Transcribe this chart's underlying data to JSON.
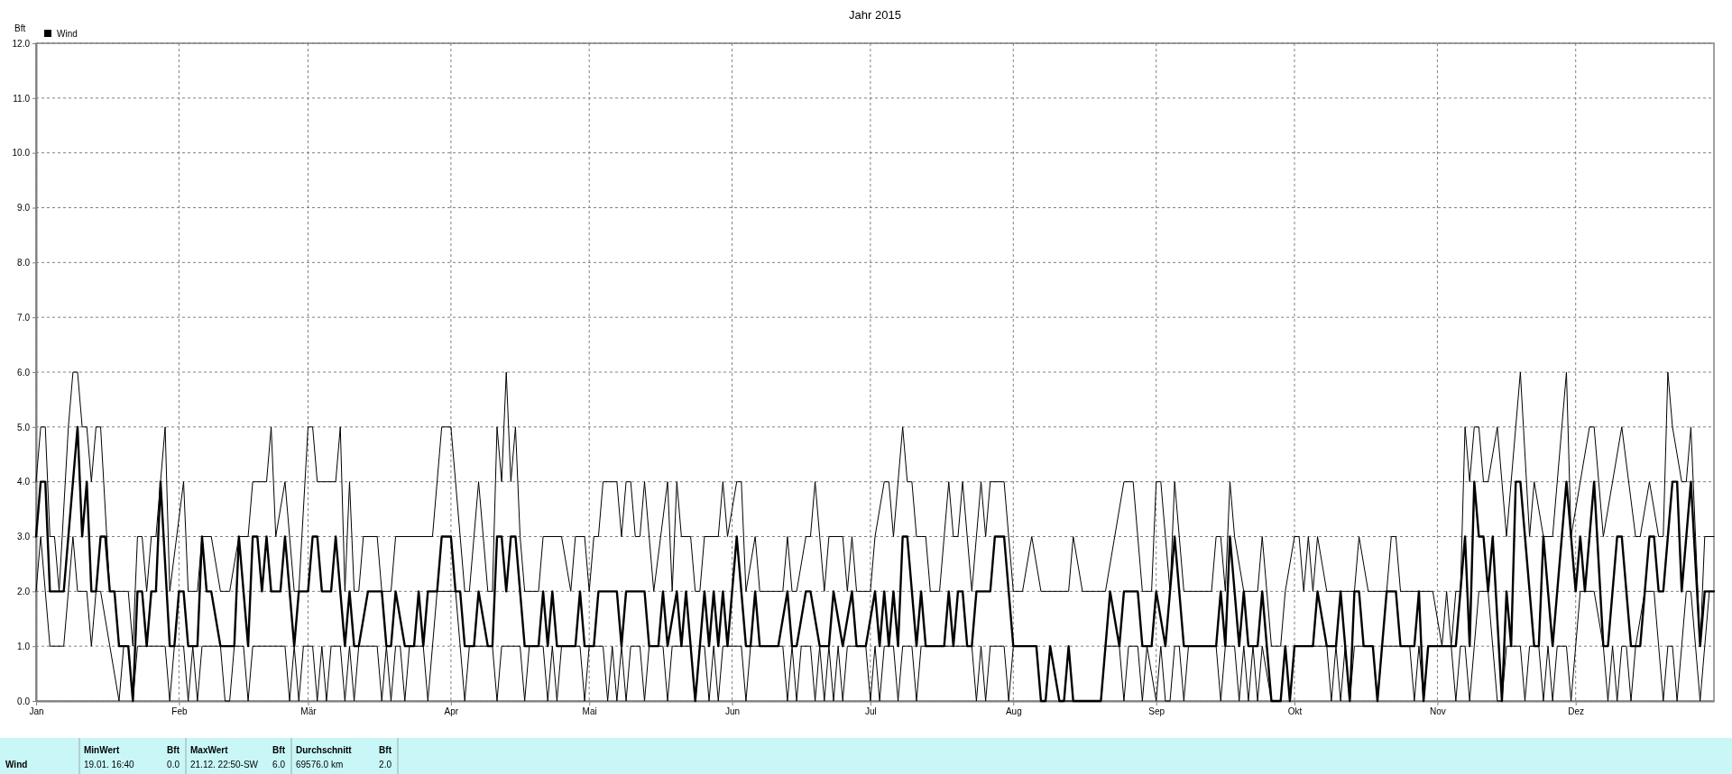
{
  "chart_data": {
    "type": "line",
    "title": "Jahr 2015",
    "ylabel": "Bft",
    "xlim": [
      "2015-01-01",
      "2015-12-31"
    ],
    "ylim": [
      0,
      12
    ],
    "xticks": [
      {
        "value": "2015-01-01",
        "label": "Jan"
      },
      {
        "value": "2015-02-01",
        "label": "Feb"
      },
      {
        "value": "2015-03-01",
        "label": "Mär"
      },
      {
        "value": "2015-04-01",
        "label": "Apr"
      },
      {
        "value": "2015-05-01",
        "label": "Mai"
      },
      {
        "value": "2015-06-01",
        "label": "Jun"
      },
      {
        "value": "2015-07-01",
        "label": "Jul"
      },
      {
        "value": "2015-08-01",
        "label": "Aug"
      },
      {
        "value": "2015-09-01",
        "label": "Sep"
      },
      {
        "value": "2015-10-01",
        "label": "Okt"
      },
      {
        "value": "2015-11-01",
        "label": "Nov"
      },
      {
        "value": "2015-12-01",
        "label": "Dez"
      }
    ],
    "yticks": [
      {
        "value": 0,
        "label": "0.0"
      },
      {
        "value": 1,
        "label": "1.0"
      },
      {
        "value": 2,
        "label": "2.0"
      },
      {
        "value": 3,
        "label": "3.0"
      },
      {
        "value": 4,
        "label": "4.0"
      },
      {
        "value": 5,
        "label": "5.0"
      },
      {
        "value": 6,
        "label": "6.0"
      },
      {
        "value": 7,
        "label": "7.0"
      },
      {
        "value": 8,
        "label": "8.0"
      },
      {
        "value": 9,
        "label": "9.0"
      },
      {
        "value": 10,
        "label": "10.0"
      },
      {
        "value": 11,
        "label": "11.0"
      },
      {
        "value": 12,
        "label": "12.0"
      }
    ],
    "grid": true,
    "legend": "top left",
    "series": [
      {
        "color": "#000000",
        "x": [
          "2015-01-01",
          "2015-01-02",
          "2015-01-03",
          "2015-01-04",
          "2015-01-05",
          "2015-01-06",
          "2015-01-08",
          "2015-01-09",
          "2015-01-10",
          "2015-01-11",
          "2015-01-12",
          "2015-01-13",
          "2015-01-14",
          "2015-01-15",
          "2015-01-17",
          "2015-01-21",
          "2015-01-22",
          "2015-01-23",
          "2015-01-24",
          "2015-01-25",
          "2015-01-26",
          "2015-01-27",
          "2015-01-29",
          "2015-01-30",
          "2015-02-02",
          "2015-02-03",
          "2015-02-05",
          "2015-02-06",
          "2015-02-08",
          "2015-02-10",
          "2015-02-12",
          "2015-02-14",
          "2015-02-16",
          "2015-02-17",
          "2015-02-20",
          "2015-02-21",
          "2015-02-22",
          "2015-02-24",
          "2015-02-26",
          "2015-02-27",
          "2015-03-01",
          "2015-03-02",
          "2015-03-03",
          "2015-03-07",
          "2015-03-08",
          "2015-03-09",
          "2015-03-10",
          "2015-03-11",
          "2015-03-12",
          "2015-03-13",
          "2015-03-16",
          "2015-03-17",
          "2015-03-19",
          "2015-03-20",
          "2015-03-28",
          "2015-03-30",
          "2015-04-01",
          "2015-04-04",
          "2015-04-05",
          "2015-04-07",
          "2015-04-09",
          "2015-04-10",
          "2015-04-11",
          "2015-04-12",
          "2015-04-13",
          "2015-04-14",
          "2015-04-15",
          "2015-04-16",
          "2015-04-17",
          "2015-04-20",
          "2015-04-21",
          "2015-04-25",
          "2015-04-27",
          "2015-04-28",
          "2015-04-30",
          "2015-05-01",
          "2015-05-02",
          "2015-05-03",
          "2015-05-04",
          "2015-05-07",
          "2015-05-08",
          "2015-05-09",
          "2015-05-10",
          "2015-05-11",
          "2015-05-12",
          "2015-05-13",
          "2015-05-15",
          "2015-05-18",
          "2015-05-19",
          "2015-05-20",
          "2015-05-21",
          "2015-05-23",
          "2015-05-24",
          "2015-05-25",
          "2015-05-26",
          "2015-05-29",
          "2015-05-30",
          "2015-05-31",
          "2015-06-02",
          "2015-06-03",
          "2015-06-04",
          "2015-06-06",
          "2015-06-07",
          "2015-06-12",
          "2015-06-13",
          "2015-06-14",
          "2015-06-15",
          "2015-06-17",
          "2015-06-18",
          "2015-06-19",
          "2015-06-21",
          "2015-06-22",
          "2015-06-25",
          "2015-06-26",
          "2015-06-27",
          "2015-06-28",
          "2015-07-01",
          "2015-07-02",
          "2015-07-04",
          "2015-07-05",
          "2015-07-06",
          "2015-07-08",
          "2015-07-09",
          "2015-07-10",
          "2015-07-11",
          "2015-07-12",
          "2015-07-13",
          "2015-07-14",
          "2015-07-16",
          "2015-07-18",
          "2015-07-19",
          "2015-07-20",
          "2015-07-21",
          "2015-07-23",
          "2015-07-25",
          "2015-07-26",
          "2015-07-27",
          "2015-07-30",
          "2015-08-01",
          "2015-08-03",
          "2015-08-05",
          "2015-08-07",
          "2015-08-13",
          "2015-08-14",
          "2015-08-16",
          "2015-08-19",
          "2015-08-21",
          "2015-08-23",
          "2015-08-25",
          "2015-08-27",
          "2015-08-29",
          "2015-08-31",
          "2015-09-01",
          "2015-09-02",
          "2015-09-04",
          "2015-09-05",
          "2015-09-07",
          "2015-09-13",
          "2015-09-14",
          "2015-09-15",
          "2015-09-16",
          "2015-09-17",
          "2015-09-18",
          "2015-09-20",
          "2015-09-23",
          "2015-09-24",
          "2015-09-26",
          "2015-09-28",
          "2015-09-29",
          "2015-10-01",
          "2015-10-02",
          "2015-10-03",
          "2015-10-04",
          "2015-10-05",
          "2015-10-06",
          "2015-10-08",
          "2015-10-14",
          "2015-10-15",
          "2015-10-17",
          "2015-10-21",
          "2015-10-22",
          "2015-10-23",
          "2015-10-24",
          "2015-10-31",
          "2015-11-02",
          "2015-11-03",
          "2015-11-04",
          "2015-11-05",
          "2015-11-06",
          "2015-11-07",
          "2015-11-08",
          "2015-11-09",
          "2015-11-10",
          "2015-11-11",
          "2015-11-12",
          "2015-11-14",
          "2015-11-16",
          "2015-11-19",
          "2015-11-21",
          "2015-11-22",
          "2015-11-24",
          "2015-11-26",
          "2015-11-29",
          "2015-11-30",
          "2015-12-02",
          "2015-12-04",
          "2015-12-05",
          "2015-12-07",
          "2015-12-09",
          "2015-12-11",
          "2015-12-14",
          "2015-12-15",
          "2015-12-17",
          "2015-12-19",
          "2015-12-20",
          "2015-12-21",
          "2015-12-22",
          "2015-12-24",
          "2015-12-25",
          "2015-12-26",
          "2015-12-27",
          "2015-12-28",
          "2015-12-29",
          "2015-12-31"
        ],
        "values": [
          4,
          5,
          5,
          3,
          3,
          2,
          5,
          6,
          6,
          5,
          5,
          4,
          5,
          5,
          2,
          2,
          1,
          3,
          3,
          2,
          3,
          3,
          5,
          2,
          4,
          2,
          2,
          3,
          3,
          2,
          2,
          3,
          3,
          4,
          4,
          5,
          3,
          4,
          2,
          2,
          5,
          5,
          4,
          4,
          5,
          2,
          4,
          2,
          2,
          3,
          3,
          2,
          2,
          3,
          3,
          5,
          5,
          2,
          2,
          4,
          2,
          2,
          5,
          4,
          6,
          4,
          5,
          3,
          2,
          2,
          3,
          3,
          2,
          3,
          3,
          2,
          3,
          3,
          4,
          4,
          3,
          4,
          4,
          3,
          3,
          4,
          2,
          4,
          2,
          4,
          3,
          3,
          2,
          2,
          3,
          3,
          4,
          3,
          4,
          4,
          2,
          3,
          2,
          2,
          3,
          2,
          2,
          3,
          3,
          4,
          2,
          3,
          3,
          2,
          3,
          2,
          2,
          3,
          4,
          4,
          3,
          5,
          4,
          4,
          3,
          3,
          3,
          2,
          2,
          4,
          3,
          3,
          4,
          2,
          4,
          3,
          4,
          4,
          2,
          2,
          3,
          2,
          2,
          3,
          2,
          2,
          2,
          3,
          4,
          4,
          2,
          2,
          4,
          4,
          2,
          4,
          2,
          2,
          3,
          3,
          2,
          4,
          3,
          2,
          2,
          3,
          1,
          1,
          2,
          3,
          3,
          2,
          3,
          2,
          3,
          2,
          2,
          3,
          2,
          2,
          3,
          3,
          2,
          2,
          1,
          2,
          1,
          2,
          2,
          5,
          4,
          5,
          5,
          4,
          4,
          5,
          3,
          6,
          3,
          4,
          3,
          3,
          6,
          3,
          4,
          5,
          5,
          3,
          4,
          5,
          3,
          3,
          4,
          3,
          3,
          6,
          5,
          4,
          4,
          5,
          3,
          1,
          3,
          3
        ]
      },
      {
        "color": "#000000",
        "x": [
          "2015-01-01",
          "2015-01-02",
          "2015-01-03",
          "2015-01-04",
          "2015-01-07",
          "2015-01-08",
          "2015-01-09",
          "2015-01-10",
          "2015-01-12",
          "2015-01-13",
          "2015-01-14",
          "2015-01-15",
          "2015-01-17",
          "2015-01-19",
          "2015-01-20",
          "2015-01-21",
          "2015-01-22",
          "2015-01-23",
          "2015-01-29",
          "2015-01-30",
          "2015-01-31",
          "2015-02-02",
          "2015-02-03",
          "2015-02-04",
          "2015-02-05",
          "2015-02-06",
          "2015-02-10",
          "2015-02-11",
          "2015-02-12",
          "2015-02-13",
          "2015-02-15",
          "2015-02-16",
          "2015-02-17",
          "2015-02-24",
          "2015-02-25",
          "2015-02-26",
          "2015-02-27",
          "2015-02-28",
          "2015-03-02",
          "2015-03-03",
          "2015-03-04",
          "2015-03-05",
          "2015-03-06",
          "2015-03-08",
          "2015-03-09",
          "2015-03-10",
          "2015-03-11",
          "2015-03-12",
          "2015-03-16",
          "2015-03-17",
          "2015-03-18",
          "2015-03-19",
          "2015-03-20",
          "2015-03-21",
          "2015-03-22",
          "2015-03-23",
          "2015-03-26",
          "2015-03-27",
          "2015-03-28",
          "2015-03-29",
          "2015-04-02",
          "2015-04-03",
          "2015-04-04",
          "2015-04-05",
          "2015-04-10",
          "2015-04-11",
          "2015-04-12",
          "2015-04-16",
          "2015-04-17",
          "2015-04-18",
          "2015-04-21",
          "2015-04-22",
          "2015-04-23",
          "2015-04-24",
          "2015-04-25",
          "2015-04-29",
          "2015-04-30",
          "2015-05-01",
          "2015-05-04",
          "2015-05-05",
          "2015-05-06",
          "2015-05-07",
          "2015-05-08",
          "2015-05-09",
          "2015-05-10",
          "2015-05-12",
          "2015-05-13",
          "2015-05-14",
          "2015-05-17",
          "2015-05-18",
          "2015-05-19",
          "2015-05-23",
          "2015-05-24",
          "2015-05-25",
          "2015-05-26",
          "2015-05-27",
          "2015-05-28",
          "2015-05-29",
          "2015-05-30",
          "2015-06-03",
          "2015-06-04",
          "2015-06-05",
          "2015-06-12",
          "2015-06-13",
          "2015-06-14",
          "2015-06-15",
          "2015-06-16",
          "2015-06-18",
          "2015-06-19",
          "2015-06-20",
          "2015-06-21",
          "2015-06-22",
          "2015-06-23",
          "2015-06-24",
          "2015-06-25",
          "2015-06-26",
          "2015-06-30",
          "2015-07-01",
          "2015-07-02",
          "2015-07-03",
          "2015-07-04",
          "2015-07-06",
          "2015-07-07",
          "2015-07-08",
          "2015-07-10",
          "2015-07-11",
          "2015-07-12",
          "2015-07-23",
          "2015-07-24",
          "2015-07-25",
          "2015-07-26",
          "2015-07-27",
          "2015-07-30",
          "2015-07-31",
          "2015-08-01",
          "2015-08-06",
          "2015-08-07",
          "2015-08-08",
          "2015-08-09",
          "2015-08-11",
          "2015-08-12",
          "2015-08-14",
          "2015-08-20",
          "2015-08-21",
          "2015-08-24",
          "2015-08-25",
          "2015-08-26",
          "2015-08-28",
          "2015-08-29",
          "2015-08-30",
          "2015-09-01",
          "2015-09-02",
          "2015-09-03",
          "2015-09-04",
          "2015-09-05",
          "2015-09-06",
          "2015-09-07",
          "2015-09-08",
          "2015-09-14",
          "2015-09-15",
          "2015-09-16",
          "2015-09-18",
          "2015-09-19",
          "2015-09-20",
          "2015-09-21",
          "2015-09-22",
          "2015-09-23",
          "2015-09-24",
          "2015-09-26",
          "2015-09-28",
          "2015-09-29",
          "2015-09-30",
          "2015-10-01",
          "2015-10-08",
          "2015-10-09",
          "2015-10-10",
          "2015-10-11",
          "2015-10-12",
          "2015-10-13",
          "2015-10-14",
          "2015-10-18",
          "2015-10-19",
          "2015-10-20",
          "2015-10-26",
          "2015-10-27",
          "2015-10-28",
          "2015-10-29",
          "2015-10-30",
          "2015-11-04",
          "2015-11-05",
          "2015-11-06",
          "2015-11-07",
          "2015-11-08",
          "2015-11-09",
          "2015-11-10",
          "2015-11-12",
          "2015-11-13",
          "2015-11-14",
          "2015-11-15",
          "2015-11-16",
          "2015-11-19",
          "2015-11-20",
          "2015-11-21",
          "2015-11-23",
          "2015-11-24",
          "2015-11-25",
          "2015-11-26",
          "2015-11-27",
          "2015-11-29",
          "2015-11-30",
          "2015-12-01",
          "2015-12-02",
          "2015-12-05",
          "2015-12-07",
          "2015-12-08",
          "2015-12-09",
          "2015-12-10",
          "2015-12-11",
          "2015-12-12",
          "2015-12-13",
          "2015-12-14",
          "2015-12-16",
          "2015-12-18",
          "2015-12-19",
          "2015-12-20",
          "2015-12-21",
          "2015-12-22",
          "2015-12-23",
          "2015-12-24",
          "2015-12-25",
          "2015-12-26",
          "2015-12-27",
          "2015-12-28",
          "2015-12-29",
          "2015-12-30",
          "2015-12-31"
        ],
        "values": [
          2,
          3,
          2,
          1,
          1,
          2,
          3,
          2,
          2,
          1,
          2,
          2,
          1,
          0,
          1,
          1,
          0,
          1,
          1,
          0,
          1,
          1,
          0,
          1,
          0,
          1,
          1,
          0,
          0,
          1,
          1,
          0,
          1,
          1,
          0,
          1,
          0,
          1,
          1,
          0,
          1,
          0,
          1,
          1,
          0,
          1,
          0,
          1,
          1,
          0,
          1,
          0,
          1,
          1,
          0,
          1,
          1,
          0,
          1,
          2,
          2,
          1,
          0,
          1,
          1,
          0,
          1,
          1,
          0,
          1,
          1,
          0,
          1,
          0,
          1,
          1,
          0,
          1,
          1,
          0,
          1,
          0,
          1,
          0,
          1,
          1,
          0,
          1,
          1,
          0,
          1,
          1,
          0,
          1,
          1,
          0,
          1,
          0,
          1,
          1,
          0,
          1,
          1,
          0,
          1,
          0,
          1,
          1,
          0,
          1,
          0,
          1,
          0,
          1,
          0,
          1,
          1,
          0,
          1,
          0,
          1,
          1,
          0,
          1,
          1,
          0,
          1,
          1,
          0,
          1,
          0,
          1,
          1,
          0,
          1,
          1,
          0,
          0,
          1,
          0,
          0,
          0,
          0,
          1,
          1,
          0,
          1,
          1,
          0,
          1,
          0,
          1,
          0,
          0,
          1,
          1,
          0,
          1,
          1,
          0,
          1,
          1,
          0,
          1,
          0,
          1,
          0,
          1,
          0,
          0,
          1,
          0,
          1,
          1,
          0,
          1,
          0,
          1,
          0,
          1,
          1,
          0,
          1,
          1,
          0,
          1,
          0,
          1,
          1,
          0,
          1,
          1,
          0,
          1,
          2,
          2,
          1,
          0,
          0,
          1,
          1,
          0,
          1,
          1,
          0,
          1,
          0,
          1,
          1,
          0,
          1,
          2,
          2,
          1,
          0,
          1,
          0,
          1,
          1,
          0,
          1,
          2,
          2,
          1,
          0,
          1,
          1,
          0,
          1,
          2,
          2,
          1,
          0,
          1,
          2,
          2
        ]
      },
      {
        "name": "Wind",
        "color": "#000000",
        "x": [
          "2015-01-01",
          "2015-01-02",
          "2015-01-03",
          "2015-01-04",
          "2015-01-07",
          "2015-01-08",
          "2015-01-09",
          "2015-01-10",
          "2015-01-11",
          "2015-01-12",
          "2015-01-13",
          "2015-01-14",
          "2015-01-15",
          "2015-01-16",
          "2015-01-17",
          "2015-01-18",
          "2015-01-19",
          "2015-01-21",
          "2015-01-22",
          "2015-01-23",
          "2015-01-24",
          "2015-01-25",
          "2015-01-26",
          "2015-01-27",
          "2015-01-28",
          "2015-01-30",
          "2015-01-31",
          "2015-02-01",
          "2015-02-02",
          "2015-02-03",
          "2015-02-05",
          "2015-02-06",
          "2015-02-07",
          "2015-02-08",
          "2015-02-10",
          "2015-02-13",
          "2015-02-14",
          "2015-02-16",
          "2015-02-17",
          "2015-02-18",
          "2015-02-19",
          "2015-02-20",
          "2015-02-21",
          "2015-02-23",
          "2015-02-24",
          "2015-02-25",
          "2015-02-26",
          "2015-02-27",
          "2015-02-28",
          "2015-03-01",
          "2015-03-02",
          "2015-03-03",
          "2015-03-04",
          "2015-03-06",
          "2015-03-07",
          "2015-03-09",
          "2015-03-10",
          "2015-03-11",
          "2015-03-12",
          "2015-03-14",
          "2015-03-17",
          "2015-03-18",
          "2015-03-19",
          "2015-03-20",
          "2015-03-22",
          "2015-03-24",
          "2015-03-25",
          "2015-03-26",
          "2015-03-27",
          "2015-03-29",
          "2015-03-30",
          "2015-04-01",
          "2015-04-02",
          "2015-04-03",
          "2015-04-04",
          "2015-04-06",
          "2015-04-07",
          "2015-04-09",
          "2015-04-10",
          "2015-04-11",
          "2015-04-12",
          "2015-04-13",
          "2015-04-14",
          "2015-04-15",
          "2015-04-16",
          "2015-04-17",
          "2015-04-20",
          "2015-04-21",
          "2015-04-22",
          "2015-04-23",
          "2015-04-24",
          "2015-04-28",
          "2015-04-29",
          "2015-04-30",
          "2015-05-02",
          "2015-05-03",
          "2015-05-07",
          "2015-05-08",
          "2015-05-09",
          "2015-05-13",
          "2015-05-14",
          "2015-05-16",
          "2015-05-17",
          "2015-05-18",
          "2015-05-20",
          "2015-05-21",
          "2015-05-22",
          "2015-05-24",
          "2015-05-26",
          "2015-05-27",
          "2015-05-28",
          "2015-05-29",
          "2015-05-30",
          "2015-05-31",
          "2015-06-02",
          "2015-06-03",
          "2015-06-04",
          "2015-06-05",
          "2015-06-06",
          "2015-06-07",
          "2015-06-11",
          "2015-06-13",
          "2015-06-14",
          "2015-06-15",
          "2015-06-17",
          "2015-06-18",
          "2015-06-20",
          "2015-06-22",
          "2015-06-23",
          "2015-06-25",
          "2015-06-27",
          "2015-06-28",
          "2015-06-30",
          "2015-07-02",
          "2015-07-03",
          "2015-07-04",
          "2015-07-05",
          "2015-07-06",
          "2015-07-07",
          "2015-07-08",
          "2015-07-09",
          "2015-07-10",
          "2015-07-11",
          "2015-07-12",
          "2015-07-13",
          "2015-07-17",
          "2015-07-18",
          "2015-07-19",
          "2015-07-20",
          "2015-07-21",
          "2015-07-22",
          "2015-07-23",
          "2015-07-24",
          "2015-07-27",
          "2015-07-28",
          "2015-07-30",
          "2015-07-31",
          "2015-08-01",
          "2015-08-06",
          "2015-08-07",
          "2015-08-08",
          "2015-08-09",
          "2015-08-11",
          "2015-08-12",
          "2015-08-13",
          "2015-08-14",
          "2015-08-20",
          "2015-08-21",
          "2015-08-22",
          "2015-08-24",
          "2015-08-25",
          "2015-08-28",
          "2015-08-29",
          "2015-08-31",
          "2015-09-01",
          "2015-09-03",
          "2015-09-05",
          "2015-09-07",
          "2015-09-14",
          "2015-09-15",
          "2015-09-16",
          "2015-09-17",
          "2015-09-19",
          "2015-09-20",
          "2015-09-21",
          "2015-09-23",
          "2015-09-24",
          "2015-09-26",
          "2015-09-28",
          "2015-09-29",
          "2015-09-30",
          "2015-10-01",
          "2015-10-05",
          "2015-10-06",
          "2015-10-08",
          "2015-10-10",
          "2015-10-11",
          "2015-10-13",
          "2015-10-14",
          "2015-10-15",
          "2015-10-16",
          "2015-10-18",
          "2015-10-19",
          "2015-10-21",
          "2015-10-23",
          "2015-10-24",
          "2015-10-27",
          "2015-10-28",
          "2015-10-29",
          "2015-10-30",
          "2015-11-05",
          "2015-11-07",
          "2015-11-08",
          "2015-11-09",
          "2015-11-10",
          "2015-11-11",
          "2015-11-12",
          "2015-11-13",
          "2015-11-15",
          "2015-11-16",
          "2015-11-17",
          "2015-11-18",
          "2015-11-19",
          "2015-11-22",
          "2015-11-23",
          "2015-11-24",
          "2015-11-26",
          "2015-11-29",
          "2015-12-01",
          "2015-12-02",
          "2015-12-03",
          "2015-12-05",
          "2015-12-07",
          "2015-12-08",
          "2015-12-10",
          "2015-12-11",
          "2015-12-13",
          "2015-12-15",
          "2015-12-17",
          "2015-12-18",
          "2015-12-19",
          "2015-12-20",
          "2015-12-22",
          "2015-12-23",
          "2015-12-24",
          "2015-12-26",
          "2015-12-28",
          "2015-12-29",
          "2015-12-31"
        ],
        "values": [
          3,
          4,
          4,
          2,
          2,
          3,
          4,
          5,
          3,
          4,
          2,
          2,
          3,
          3,
          2,
          2,
          1,
          1,
          0,
          2,
          2,
          1,
          2,
          2,
          4,
          1,
          1,
          2,
          2,
          1,
          1,
          3,
          2,
          2,
          1,
          1,
          3,
          1,
          3,
          3,
          2,
          3,
          2,
          2,
          3,
          2,
          1,
          2,
          2,
          2,
          3,
          3,
          2,
          2,
          3,
          1,
          2,
          1,
          1,
          2,
          2,
          1,
          1,
          2,
          1,
          1,
          2,
          1,
          2,
          2,
          3,
          3,
          2,
          2,
          1,
          1,
          2,
          1,
          1,
          3,
          3,
          2,
          3,
          3,
          2,
          1,
          1,
          2,
          1,
          2,
          1,
          1,
          2,
          1,
          1,
          2,
          2,
          1,
          2,
          2,
          1,
          1,
          2,
          1,
          2,
          1,
          2,
          0,
          2,
          1,
          2,
          1,
          2,
          1,
          3,
          2,
          1,
          1,
          2,
          1,
          1,
          2,
          1,
          1,
          2,
          2,
          1,
          1,
          2,
          1,
          2,
          1,
          1,
          2,
          1,
          2,
          1,
          2,
          1,
          3,
          3,
          2,
          1,
          2,
          1,
          1,
          2,
          1,
          2,
          2,
          1,
          1,
          2,
          2,
          3,
          3,
          2,
          1,
          1,
          0,
          0,
          1,
          0,
          0,
          1,
          0,
          0,
          1,
          2,
          1,
          2,
          2,
          1,
          1,
          2,
          1,
          3,
          1,
          1,
          2,
          1,
          3,
          1,
          2,
          1,
          1,
          2,
          0,
          0,
          1,
          0,
          1,
          1,
          2,
          1,
          1,
          2,
          0,
          2,
          2,
          1,
          1,
          0,
          2,
          2,
          1,
          1,
          2,
          0,
          1,
          1,
          3,
          1,
          4,
          3,
          3,
          2,
          3,
          0,
          2,
          1,
          4,
          4,
          1,
          1,
          3,
          1,
          4,
          2,
          3,
          2,
          4,
          1,
          1,
          3,
          3,
          1,
          1,
          3,
          3,
          2,
          2,
          4,
          4,
          2,
          4,
          1,
          2,
          2
        ]
      }
    ],
    "annotations": [
      "Wind",
      "MinWert",
      "Bft",
      "MaxWert",
      "Bft",
      "Durchschnitt",
      "Bft",
      "19.01. 16:40",
      "0.0",
      "21.12. 22:50-SW",
      "6.0",
      "69576.0 km",
      "2.0"
    ]
  }
}
